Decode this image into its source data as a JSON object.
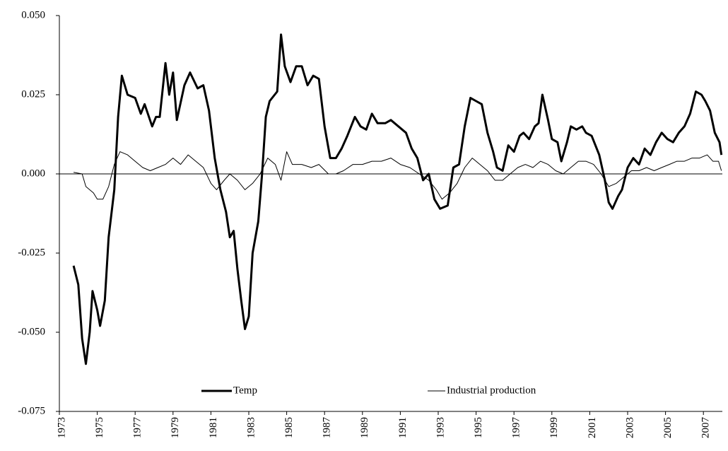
{
  "chart_data": {
    "type": "line",
    "xlim": [
      1973,
      2008
    ],
    "xticks": [
      1973,
      1975,
      1977,
      1979,
      1981,
      1983,
      1985,
      1987,
      1989,
      1991,
      1993,
      1995,
      1997,
      1999,
      2001,
      2003,
      2005,
      2007
    ],
    "ylim": [
      -0.075,
      0.05
    ],
    "yticks": [
      {
        "value": -0.075,
        "label": "-0.075"
      },
      {
        "value": -0.05,
        "label": "-0.050"
      },
      {
        "value": -0.025,
        "label": "-0.025"
      },
      {
        "value": 0,
        "label": "0.000"
      },
      {
        "value": 0.025,
        "label": "0.025"
      },
      {
        "value": 0.05,
        "label": "0.050"
      }
    ],
    "legend": "bottom",
    "series": [
      {
        "name": "Temp",
        "color": "#000000",
        "width": 3,
        "x": [
          1973.75,
          1974.0,
          1974.2,
          1974.4,
          1974.6,
          1974.75,
          1975.0,
          1975.15,
          1975.4,
          1975.6,
          1975.9,
          1976.1,
          1976.3,
          1976.6,
          1977.0,
          1977.3,
          1977.5,
          1977.9,
          1978.1,
          1978.3,
          1978.6,
          1978.8,
          1979.0,
          1979.2,
          1979.6,
          1979.9,
          1980.3,
          1980.6,
          1980.9,
          1981.2,
          1981.5,
          1981.8,
          1982.0,
          1982.2,
          1982.4,
          1982.6,
          1982.8,
          1983.0,
          1983.2,
          1983.5,
          1983.7,
          1983.9,
          1984.1,
          1984.5,
          1984.7,
          1984.9,
          1985.2,
          1985.5,
          1985.8,
          1986.1,
          1986.4,
          1986.7,
          1987.0,
          1987.3,
          1987.6,
          1987.9,
          1988.2,
          1988.6,
          1988.9,
          1989.2,
          1989.5,
          1989.8,
          1990.2,
          1990.5,
          1990.9,
          1991.3,
          1991.6,
          1991.9,
          1992.2,
          1992.5,
          1992.8,
          1993.1,
          1993.5,
          1993.8,
          1994.1,
          1994.4,
          1994.7,
          1995.0,
          1995.3,
          1995.6,
          1995.9,
          1996.1,
          1996.4,
          1996.7,
          1997.0,
          1997.3,
          1997.5,
          1997.8,
          1998.1,
          1998.3,
          1998.5,
          1998.8,
          1999.0,
          1999.3,
          1999.5,
          1999.8,
          2000.0,
          2000.3,
          2000.6,
          2000.8,
          2001.1,
          2001.5,
          2001.8,
          2002.0,
          2002.2,
          2002.5,
          2002.7,
          2003.0,
          2003.3,
          2003.6,
          2003.9,
          2004.2,
          2004.5,
          2004.8,
          2005.1,
          2005.4,
          2005.7,
          2006.0,
          2006.3,
          2006.6,
          2006.9,
          2007.1,
          2007.35,
          2007.6,
          2007.85,
          2007.95
        ],
        "values": [
          -0.029,
          -0.035,
          -0.052,
          -0.06,
          -0.05,
          -0.037,
          -0.043,
          -0.048,
          -0.04,
          -0.02,
          -0.005,
          0.018,
          0.031,
          0.025,
          0.024,
          0.019,
          0.022,
          0.015,
          0.018,
          0.018,
          0.035,
          0.025,
          0.032,
          0.017,
          0.028,
          0.032,
          0.027,
          0.028,
          0.02,
          0.005,
          -0.005,
          -0.012,
          -0.02,
          -0.018,
          -0.03,
          -0.04,
          -0.049,
          -0.045,
          -0.025,
          -0.015,
          0.0,
          0.018,
          0.023,
          0.026,
          0.044,
          0.034,
          0.029,
          0.034,
          0.034,
          0.028,
          0.031,
          0.03,
          0.015,
          0.005,
          0.005,
          0.008,
          0.012,
          0.018,
          0.015,
          0.014,
          0.019,
          0.016,
          0.016,
          0.017,
          0.015,
          0.013,
          0.008,
          0.005,
          -0.002,
          0.0,
          -0.008,
          -0.011,
          -0.01,
          0.002,
          0.003,
          0.015,
          0.024,
          0.023,
          0.022,
          0.013,
          0.007,
          0.002,
          0.001,
          0.009,
          0.007,
          0.012,
          0.013,
          0.011,
          0.015,
          0.016,
          0.025,
          0.017,
          0.011,
          0.01,
          0.004,
          0.01,
          0.015,
          0.014,
          0.015,
          0.013,
          0.012,
          0.006,
          -0.002,
          -0.009,
          -0.011,
          -0.007,
          -0.005,
          0.002,
          0.005,
          0.003,
          0.008,
          0.006,
          0.01,
          0.013,
          0.011,
          0.01,
          0.013,
          0.015,
          0.019,
          0.026,
          0.025,
          0.023,
          0.02,
          0.013,
          0.01,
          0.006
        ]
      },
      {
        "name": "Industrial production",
        "color": "#000000",
        "width": 1,
        "x": [
          1973.75,
          1974.2,
          1974.4,
          1974.8,
          1975.0,
          1975.3,
          1975.6,
          1975.9,
          1976.2,
          1976.6,
          1977.0,
          1977.4,
          1977.8,
          1978.2,
          1978.6,
          1979.0,
          1979.4,
          1979.8,
          1980.2,
          1980.6,
          1981.0,
          1981.3,
          1981.7,
          1982.0,
          1982.4,
          1982.8,
          1983.2,
          1983.6,
          1984.0,
          1984.4,
          1984.7,
          1985.0,
          1985.3,
          1985.8,
          1986.3,
          1986.7,
          1987.2,
          1987.6,
          1988.0,
          1988.5,
          1989.0,
          1989.5,
          1990.0,
          1990.5,
          1991.0,
          1991.5,
          1992.0,
          1992.5,
          1992.9,
          1993.2,
          1993.6,
          1994.0,
          1994.4,
          1994.8,
          1995.2,
          1995.6,
          1996.0,
          1996.4,
          1996.8,
          1997.2,
          1997.6,
          1998.0,
          1998.4,
          1998.8,
          1999.2,
          1999.6,
          2000.0,
          2000.4,
          2000.8,
          2001.2,
          2001.6,
          2002.0,
          2002.4,
          2002.8,
          2003.2,
          2003.6,
          2004.0,
          2004.4,
          2004.8,
          2005.2,
          2005.6,
          2006.0,
          2006.4,
          2006.8,
          2007.2,
          2007.5,
          2007.8,
          2007.95
        ],
        "values": [
          0.0005,
          0.0,
          -0.004,
          -0.006,
          -0.008,
          -0.008,
          -0.004,
          0.003,
          0.007,
          0.006,
          0.004,
          0.002,
          0.001,
          0.002,
          0.003,
          0.005,
          0.003,
          0.006,
          0.004,
          0.002,
          -0.003,
          -0.005,
          -0.002,
          0.0,
          -0.002,
          -0.005,
          -0.003,
          0.0,
          0.005,
          0.003,
          -0.002,
          0.007,
          0.003,
          0.003,
          0.002,
          0.003,
          0.0,
          0.0,
          0.001,
          0.003,
          0.003,
          0.004,
          0.004,
          0.005,
          0.003,
          0.002,
          0.0,
          -0.002,
          -0.005,
          -0.008,
          -0.006,
          -0.003,
          0.002,
          0.005,
          0.003,
          0.001,
          -0.002,
          -0.002,
          0.0,
          0.002,
          0.003,
          0.002,
          0.004,
          0.003,
          0.001,
          0.0,
          0.002,
          0.004,
          0.004,
          0.003,
          0.0,
          -0.004,
          -0.003,
          -0.001,
          0.001,
          0.001,
          0.002,
          0.001,
          0.002,
          0.003,
          0.004,
          0.004,
          0.005,
          0.005,
          0.006,
          0.004,
          0.004,
          0.001
        ]
      }
    ]
  }
}
